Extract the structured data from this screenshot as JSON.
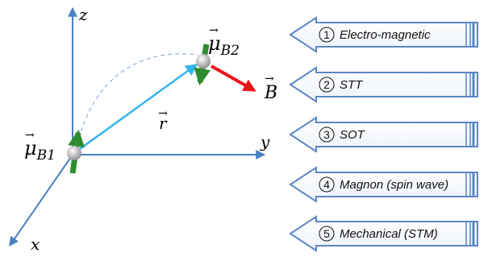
{
  "axes": {
    "z": "z",
    "y": "y",
    "x": "x"
  },
  "vectors": {
    "r": "r",
    "B": "B",
    "mu_b1": {
      "symbol": "μ",
      "subscript": "B1"
    },
    "mu_b2": {
      "symbol": "μ",
      "subscript": "B2"
    }
  },
  "mechanisms": [
    {
      "number": "1",
      "label": "Electro-magnetic"
    },
    {
      "number": "2",
      "label": "STT"
    },
    {
      "number": "3",
      "label": "SOT"
    },
    {
      "number": "4",
      "label": "Magnon (spin wave)"
    },
    {
      "number": "5",
      "label": "Mechanical (STM)"
    }
  ]
}
